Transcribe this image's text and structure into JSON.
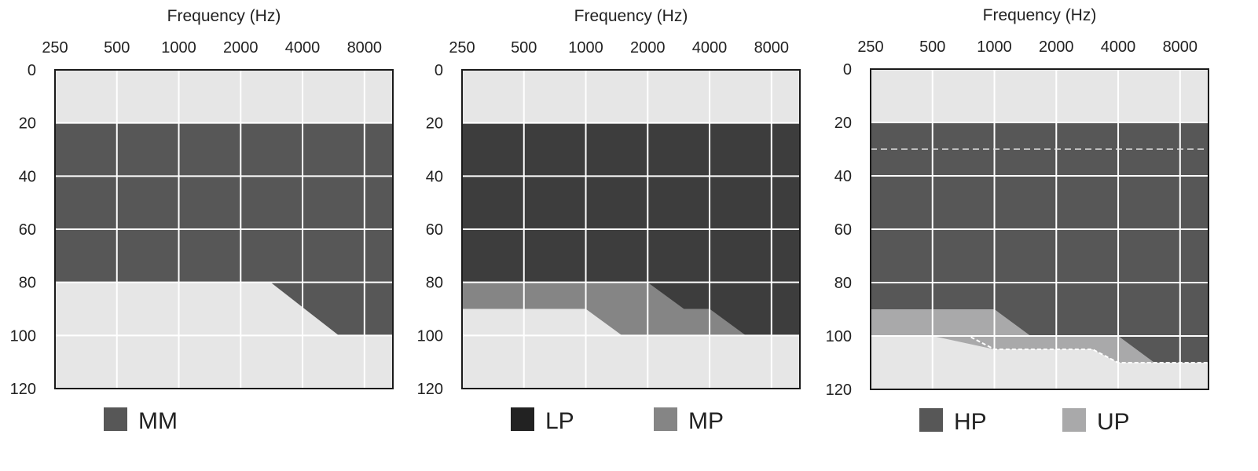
{
  "chart_data": [
    {
      "type": "area",
      "xlabel": "Frequency (Hz)",
      "x_ticks": [
        "250",
        "500",
        "1000",
        "2000",
        "4000",
        "8000"
      ],
      "y_ticks": [
        "0",
        "20",
        "40",
        "60",
        "80",
        "100",
        "120"
      ],
      "xscale": "log2",
      "xlim": [
        250,
        11000
      ],
      "ylim": [
        0,
        120
      ],
      "y_inverted": true,
      "grid": true,
      "background_color": "#e6e6e6",
      "series": [
        {
          "name": "MM",
          "color": "#575757",
          "region": {
            "x": [
              250,
              2800,
              6000,
              11000
            ],
            "top": [
              20,
              20,
              20,
              20
            ],
            "bottom": [
              80,
              80,
              100,
              100
            ]
          }
        }
      ],
      "dashed_lines": [],
      "legend_placement": "bottom-left"
    },
    {
      "type": "area",
      "xlabel": "Frequency (Hz)",
      "x_ticks": [
        "250",
        "500",
        "1000",
        "2000",
        "4000",
        "8000"
      ],
      "y_ticks": [
        "0",
        "20",
        "40",
        "60",
        "80",
        "100",
        "120"
      ],
      "xscale": "log2",
      "xlim": [
        250,
        11000
      ],
      "ylim": [
        0,
        120
      ],
      "y_inverted": true,
      "grid": true,
      "background_color": "#e6e6e6",
      "series": [
        {
          "name": "MP",
          "color": "#858585",
          "region": {
            "x": [
              250,
              1000,
              1500,
              11000
            ],
            "top": [
              80,
              80,
              80,
              80
            ],
            "bottom": [
              90,
              90,
              100,
              100
            ]
          }
        },
        {
          "name": "LP",
          "color": "#3d3d3d",
          "region": {
            "x": [
              250,
              2000,
              3000,
              4000,
              6000,
              11000
            ],
            "top": [
              20,
              20,
              20,
              20,
              20,
              20
            ],
            "bottom": [
              80,
              80,
              90,
              90,
              100,
              100
            ]
          }
        }
      ],
      "dashed_lines": [],
      "legend_placement": "bottom-left"
    },
    {
      "type": "area",
      "xlabel": "Frequency (Hz)",
      "x_ticks": [
        "250",
        "500",
        "1000",
        "2000",
        "4000",
        "8000"
      ],
      "y_ticks": [
        "0",
        "20",
        "40",
        "60",
        "80",
        "100",
        "120"
      ],
      "xscale": "log2",
      "xlim": [
        250,
        11000
      ],
      "ylim": [
        0,
        120
      ],
      "y_inverted": true,
      "grid": true,
      "background_color": "#e6e6e6",
      "series": [
        {
          "name": "UP",
          "color": "#a9a9aa",
          "region": {
            "x": [
              250,
              500,
              1000,
              1500,
              2000,
              3000,
              4000,
              6000,
              11000
            ],
            "top": [
              90,
              90,
              90,
              100,
              100,
              100,
              100,
              110,
              110
            ],
            "bottom": [
              100,
              100,
              105,
              105,
              105,
              105,
              110,
              110,
              110
            ]
          }
        },
        {
          "name": "HP",
          "color": "#575757",
          "region": {
            "x": [
              250,
              1000,
              1500,
              4000,
              6000,
              11000
            ],
            "top": [
              20,
              20,
              20,
              20,
              20,
              20
            ],
            "bottom": [
              90,
              90,
              100,
              100,
              110,
              110
            ]
          }
        }
      ],
      "dashed_lines": [
        {
          "y": 30,
          "x_from": 250,
          "x_to": 11000,
          "color": "#e0e0e0"
        },
        {
          "x": [
            250,
            750,
            1000,
            1500,
            2000,
            3000,
            4000,
            5000,
            11000
          ],
          "y": [
            100,
            100,
            105,
            105,
            105,
            105,
            110,
            110,
            110
          ],
          "color": "#ffffff"
        }
      ],
      "legend_placement": "bottom-left"
    }
  ]
}
